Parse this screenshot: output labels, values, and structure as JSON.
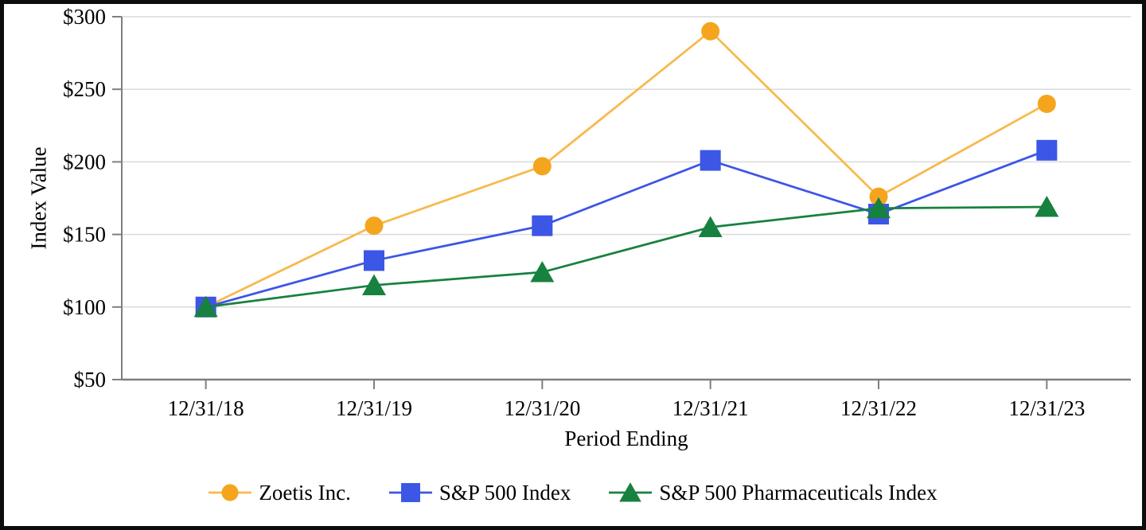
{
  "chart_data": {
    "type": "line",
    "title": "",
    "xlabel": "Period Ending",
    "ylabel": "Index Value",
    "x": [
      "12/31/18",
      "12/31/19",
      "12/31/20",
      "12/31/21",
      "12/31/22",
      "12/31/23"
    ],
    "ylim": [
      50,
      300
    ],
    "y_ticks": [
      {
        "value": 50,
        "label": "$50"
      },
      {
        "value": 100,
        "label": "$100"
      },
      {
        "value": 150,
        "label": "$150"
      },
      {
        "value": 200,
        "label": "$200"
      },
      {
        "value": 250,
        "label": "$250"
      },
      {
        "value": 300,
        "label": "$300"
      }
    ],
    "grid": true,
    "legend_position": "bottom",
    "series": [
      {
        "name": "Zoetis Inc.",
        "marker": "circle",
        "marker_color": "#F5A51D",
        "line_color": "#F8B94C",
        "values": [
          100,
          156,
          197,
          290,
          176,
          240
        ]
      },
      {
        "name": "S&P 500 Index",
        "marker": "square",
        "marker_color": "#3C56E5",
        "line_color": "#3C56E5",
        "values": [
          100,
          132,
          156,
          201,
          164,
          208
        ]
      },
      {
        "name": "S&P 500 Pharmaceuticals Index",
        "marker": "triangle",
        "marker_color": "#17813F",
        "line_color": "#17813F",
        "values": [
          100,
          115,
          124,
          155,
          168,
          169
        ]
      }
    ]
  },
  "style": {
    "frame_border_color": "#0d0d0d",
    "background_color": "#ffffff",
    "axis_color": "#7F7F7F",
    "grid_color": "#DADADA",
    "text_color": "#000000"
  }
}
